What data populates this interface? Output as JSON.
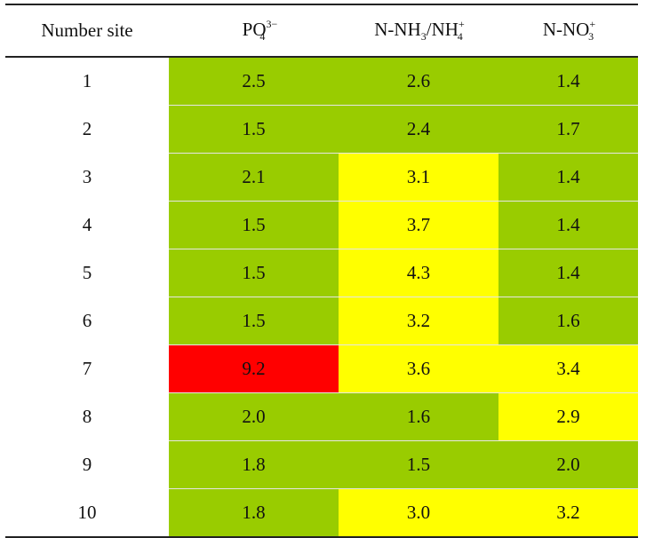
{
  "table": {
    "headers": {
      "site": "Number site",
      "po4": {
        "base": "PO",
        "sub": "4",
        "sup": "3−"
      },
      "nh": {
        "base1": "N-NH",
        "sub1": "3",
        "sep": "/NH",
        "sub2": "4",
        "sup2": "+"
      },
      "no3": {
        "base": "N-NO",
        "sub": "3",
        "sup": "+"
      }
    },
    "rows": [
      {
        "site": "1",
        "po4": "2.5",
        "nh": "2.6",
        "no3": "1.4"
      },
      {
        "site": "2",
        "po4": "1.5",
        "nh": "2.4",
        "no3": "1.7"
      },
      {
        "site": "3",
        "po4": "2.1",
        "nh": "3.1",
        "no3": "1.4"
      },
      {
        "site": "4",
        "po4": "1.5",
        "nh": "3.7",
        "no3": "1.4"
      },
      {
        "site": "5",
        "po4": "1.5",
        "nh": "4.3",
        "no3": "1.4"
      },
      {
        "site": "6",
        "po4": "1.5",
        "nh": "3.2",
        "no3": "1.6"
      },
      {
        "site": "7",
        "po4": "9.2",
        "nh": "3.6",
        "no3": "3.4"
      },
      {
        "site": "8",
        "po4": "2.0",
        "nh": "1.6",
        "no3": "2.9"
      },
      {
        "site": "9",
        "po4": "1.8",
        "nh": "1.5",
        "no3": "2.0"
      },
      {
        "site": "10",
        "po4": "1.8",
        "nh": "3.0",
        "no3": "3.2"
      }
    ],
    "cell_colors": [
      [
        "green",
        "green",
        "green"
      ],
      [
        "green",
        "green",
        "green"
      ],
      [
        "green",
        "yellow",
        "green"
      ],
      [
        "green",
        "yellow",
        "green"
      ],
      [
        "green",
        "yellow",
        "green"
      ],
      [
        "green",
        "yellow",
        "green"
      ],
      [
        "red",
        "yellow",
        "yellow"
      ],
      [
        "green",
        "green",
        "yellow"
      ],
      [
        "green",
        "green",
        "green"
      ],
      [
        "green",
        "yellow",
        "yellow"
      ]
    ],
    "palette": {
      "green": "#99cc00",
      "yellow": "#ffff00",
      "red": "#ff0000"
    }
  }
}
